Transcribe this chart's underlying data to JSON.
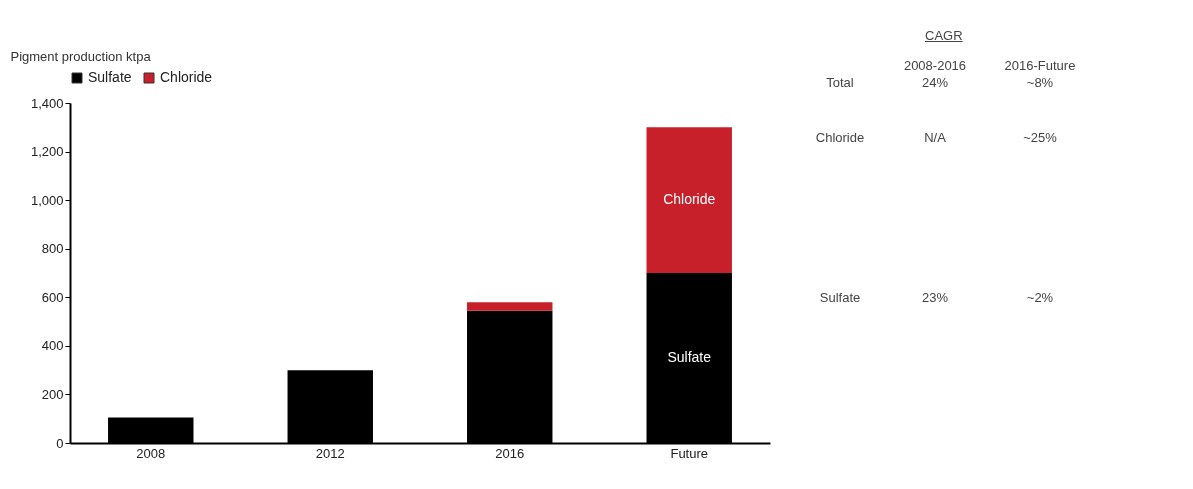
{
  "chart_data": {
    "type": "bar",
    "ylabel": "Pigment production ktpa",
    "categories": [
      "2008",
      "2012",
      "2016",
      "Future"
    ],
    "stacked": true,
    "legend": "top",
    "grid": false,
    "series": [
      {
        "name": "Sulfate",
        "color": "#000000",
        "values": [
          105,
          300,
          545,
          700
        ]
      },
      {
        "name": "Chloride",
        "color": "#c8202a",
        "values": [
          null,
          null,
          35,
          600
        ]
      }
    ],
    "ylim": [
      0,
      1400
    ],
    "yticks": [
      0,
      200,
      400,
      600,
      800,
      {
        "value": 1000,
        "label": "1,000"
      },
      {
        "value": 1200,
        "label": "1,200"
      },
      {
        "value": 1400,
        "label": "1,400"
      }
    ],
    "annotations": [
      "CAGR",
      "2008-2016",
      "2016-Future",
      "Total",
      "24%",
      "~8%",
      "Chloride",
      "N/A",
      "~25%",
      "Sulfate",
      "23%",
      "~2%"
    ]
  }
}
